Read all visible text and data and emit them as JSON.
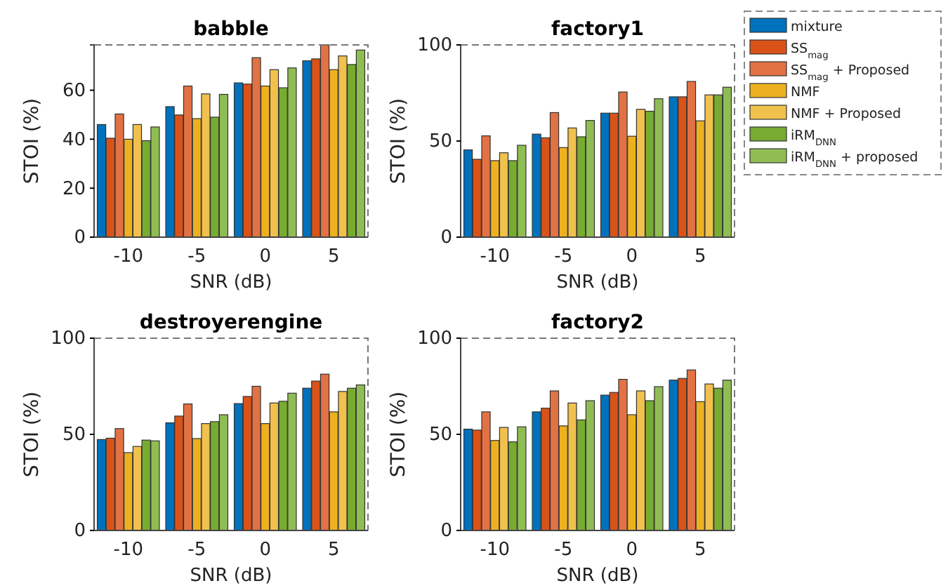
{
  "chart_data": [
    {
      "type": "bar",
      "title": "babble",
      "xlabel": "SNR (dB)",
      "ylabel": "STOI (%)",
      "categories": [
        "-10",
        "-5",
        "0",
        "5"
      ],
      "ylim": [
        0,
        78.5
      ],
      "yticks": [
        0,
        20,
        40,
        60
      ],
      "legend": "right",
      "grid": false,
      "series": [
        {
          "name": "mixture",
          "color": "#0072bd",
          "values": [
            46,
            53.3,
            63,
            72
          ]
        },
        {
          "name": "SS$_{mag}$",
          "color": "#d95319",
          "values": [
            40.4,
            49.9,
            62.5,
            72.8
          ]
        },
        {
          "name": "SS$_{mag}$ + Proposed",
          "color": "#e27244",
          "values": [
            50.3,
            61.7,
            73.3,
            78.5
          ]
        },
        {
          "name": "NMF",
          "color": "#edb120",
          "values": [
            40,
            48.4,
            61.7,
            68.4
          ]
        },
        {
          "name": "NMF + Proposed",
          "color": "#f1c14d",
          "values": [
            46,
            58.5,
            68.4,
            74
          ]
        },
        {
          "name": "iRM$_{DNN}$",
          "color": "#77ac30",
          "values": [
            39.4,
            49,
            61,
            70.5
          ]
        },
        {
          "name": "iRM$_{DNN}$ + proposed",
          "color": "#8fbd53",
          "values": [
            45,
            58.3,
            69.1,
            76.4
          ]
        }
      ]
    },
    {
      "type": "bar",
      "title": "factory1",
      "xlabel": "SNR (dB)",
      "ylabel": "STOI (%)",
      "categories": [
        "-10",
        "-5",
        "0",
        "5"
      ],
      "ylim": [
        0,
        100
      ],
      "yticks": [
        0,
        50,
        100
      ],
      "grid": false,
      "series": [
        {
          "color": "#0072bd",
          "values": [
            45.4,
            53.6,
            64.5,
            73
          ]
        },
        {
          "color": "#d95319",
          "values": [
            40.5,
            51.7,
            64.5,
            73
          ]
        },
        {
          "color": "#e27244",
          "values": [
            52.7,
            64.8,
            75.5,
            81
          ]
        },
        {
          "color": "#edb120",
          "values": [
            39.8,
            46.6,
            52.5,
            60.5
          ]
        },
        {
          "color": "#f1c14d",
          "values": [
            43.9,
            56.8,
            66.5,
            74
          ]
        },
        {
          "color": "#77ac30",
          "values": [
            39.8,
            52.2,
            65.5,
            74
          ]
        },
        {
          "color": "#8fbd53",
          "values": [
            47.8,
            60.7,
            72,
            78
          ]
        }
      ]
    },
    {
      "type": "bar",
      "title": "destroyerengine",
      "xlabel": "SNR (dB)",
      "ylabel": "STOI (%)",
      "categories": [
        "-10",
        "-5",
        "0",
        "5"
      ],
      "ylim": [
        0,
        100
      ],
      "yticks": [
        0,
        50,
        100
      ],
      "grid": false,
      "series": [
        {
          "color": "#0072bd",
          "values": [
            47.3,
            56,
            66,
            74
          ]
        },
        {
          "color": "#d95319",
          "values": [
            48,
            59.5,
            69.7,
            77.7
          ]
        },
        {
          "color": "#e27244",
          "values": [
            53,
            65.8,
            75,
            81.3
          ]
        },
        {
          "color": "#edb120",
          "values": [
            40.5,
            47.8,
            55.6,
            61.7
          ]
        },
        {
          "color": "#f1c14d",
          "values": [
            43.7,
            55.6,
            66.3,
            72.3
          ]
        },
        {
          "color": "#77ac30",
          "values": [
            47,
            56.6,
            67.2,
            74
          ]
        },
        {
          "color": "#8fbd53",
          "values": [
            46.6,
            60.2,
            71.4,
            75.7
          ]
        }
      ]
    },
    {
      "type": "bar",
      "title": "factory2",
      "xlabel": "SNR (dB)",
      "ylabel": "STOI (%)",
      "categories": [
        "-10",
        "-5",
        "0",
        "5"
      ],
      "ylim": [
        0,
        100
      ],
      "yticks": [
        0,
        50,
        100
      ],
      "grid": false,
      "series": [
        {
          "color": "#0072bd",
          "values": [
            52.7,
            61.7,
            70.4,
            78.2
          ]
        },
        {
          "color": "#d95319",
          "values": [
            52.2,
            63.6,
            71.8,
            79.1
          ]
        },
        {
          "color": "#e27244",
          "values": [
            61.7,
            72.6,
            78.6,
            83.5
          ]
        },
        {
          "color": "#edb120",
          "values": [
            46.8,
            54.4,
            60.2,
            67
          ]
        },
        {
          "color": "#f1c14d",
          "values": [
            53.6,
            66.3,
            72.6,
            76.2
          ]
        },
        {
          "color": "#77ac30",
          "values": [
            46.1,
            57.5,
            67.5,
            74
          ]
        },
        {
          "color": "#8fbd53",
          "values": [
            53.9,
            67.5,
            74.8,
            78.2
          ]
        }
      ]
    }
  ]
}
